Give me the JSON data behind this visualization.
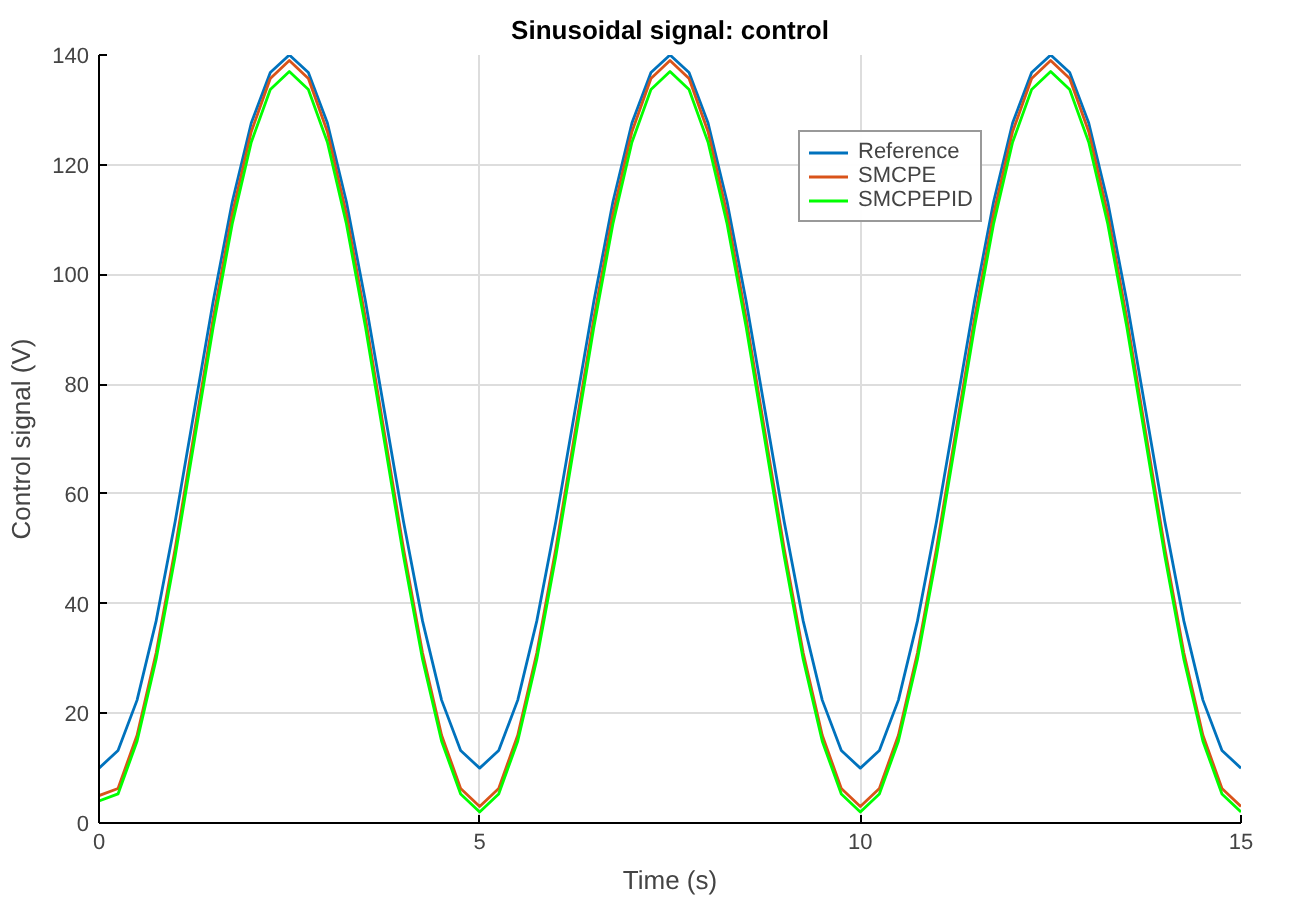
{
  "chart_data": {
    "type": "line",
    "title": "Sinusoidal signal: control",
    "xlabel": "Time (s)",
    "ylabel": "Control signal (V)",
    "x": [
      0,
      0.25,
      0.5,
      0.75,
      1,
      1.25,
      1.5,
      1.75,
      2,
      2.25,
      2.5,
      2.75,
      3,
      3.25,
      3.5,
      3.75,
      4,
      4.25,
      4.5,
      4.75,
      5,
      5.25,
      5.5,
      5.75,
      6,
      6.25,
      6.5,
      6.75,
      7,
      7.25,
      7.5,
      7.75,
      8,
      8.25,
      8.5,
      8.75,
      9,
      9.25,
      9.5,
      9.75,
      10,
      10.25,
      10.5,
      10.75,
      11,
      11.25,
      11.5,
      11.75,
      12,
      12.25,
      12.5,
      12.75,
      13,
      13.25,
      13.5,
      13.75,
      14,
      14.25,
      14.5,
      14.75,
      15
    ],
    "series": [
      {
        "name": "Reference",
        "color": "#0072bd",
        "values": [
          10,
          13.2,
          22.4,
          36.8,
          54.9,
          75,
          95.1,
          113.2,
          127.6,
          136.8,
          140,
          136.8,
          127.6,
          113.2,
          95.1,
          75,
          54.9,
          36.8,
          22.4,
          13.2,
          10,
          13.2,
          22.4,
          36.8,
          54.9,
          75,
          95.1,
          113.2,
          127.6,
          136.8,
          140,
          136.8,
          127.6,
          113.2,
          95.1,
          75,
          54.9,
          36.8,
          22.4,
          13.2,
          10,
          13.2,
          22.4,
          36.8,
          54.9,
          75,
          95.1,
          113.2,
          127.6,
          136.8,
          140,
          136.8,
          127.6,
          113.2,
          95.1,
          75,
          54.9,
          36.8,
          22.4,
          13.2,
          10
        ]
      },
      {
        "name": "SMCPE",
        "color": "#d95319",
        "values": [
          5,
          6.3,
          16,
          31,
          50,
          71,
          92,
          111,
          126,
          135.7,
          139,
          135.7,
          126,
          111,
          92,
          71,
          50,
          31,
          16,
          6.3,
          3,
          6.3,
          16,
          31,
          50,
          71,
          92,
          111,
          126,
          135.7,
          139,
          135.7,
          126,
          111,
          92,
          71,
          50,
          31,
          16,
          6.3,
          3,
          6.3,
          16,
          31,
          50,
          71,
          92,
          111,
          126,
          135.7,
          139,
          135.7,
          126,
          111,
          92,
          71,
          50,
          31,
          16,
          6.3,
          3
        ]
      },
      {
        "name": "SMCPEPID",
        "color": "#00ff00",
        "values": [
          4,
          5.3,
          14.9,
          29.8,
          48.6,
          69.5,
          90.4,
          109.2,
          124.1,
          133.7,
          137,
          133.7,
          124.1,
          109.2,
          90.4,
          69.5,
          48.6,
          29.8,
          14.9,
          5.3,
          2,
          5.3,
          14.9,
          29.8,
          48.6,
          69.5,
          90.4,
          109.2,
          124.1,
          133.7,
          137,
          133.7,
          124.1,
          109.2,
          90.4,
          69.5,
          48.6,
          29.8,
          14.9,
          5.3,
          2,
          5.3,
          14.9,
          29.8,
          48.6,
          69.5,
          90.4,
          109.2,
          124.1,
          133.7,
          137,
          133.7,
          124.1,
          109.2,
          90.4,
          69.5,
          48.6,
          29.8,
          14.9,
          5.3,
          2
        ]
      }
    ],
    "xlim": [
      0,
      15
    ],
    "ylim": [
      0,
      140
    ],
    "xticks": [
      0,
      5,
      10,
      15
    ],
    "yticks": [
      0,
      20,
      40,
      60,
      80,
      100,
      120,
      140
    ],
    "grid": true,
    "legend": "top right",
    "line_style": "solid"
  }
}
